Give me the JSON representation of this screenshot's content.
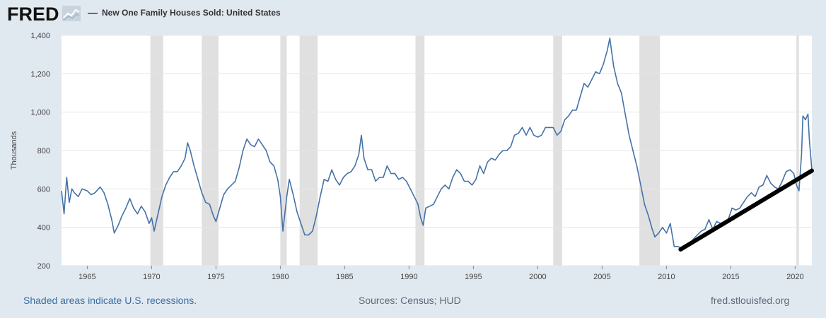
{
  "header": {
    "logo_text": "FRED",
    "series_label": "New One Family Houses Sold: United States"
  },
  "footer": {
    "recession_note": "Shaded areas indicate U.S. recessions.",
    "sources": "Sources: Census; HUD",
    "website": "fred.stlouisfed.org"
  },
  "colors": {
    "series": "#4572a7",
    "trendline": "#000000",
    "recession": "#e0e0e0",
    "background": "#e1e9f0",
    "plot": "#ffffff"
  },
  "chart_data": {
    "type": "line",
    "title": "New One Family Houses Sold: United States",
    "ylabel": "Thousands",
    "xlabel": "",
    "xlim": [
      1963.0,
      2021.3
    ],
    "ylim": [
      200,
      1400
    ],
    "x_ticks": [
      1965,
      1970,
      1975,
      1980,
      1985,
      1990,
      1995,
      2000,
      2005,
      2010,
      2015,
      2020
    ],
    "y_ticks": [
      200,
      400,
      600,
      800,
      1000,
      1200,
      1400
    ],
    "y_tick_labels": [
      "200",
      "400",
      "600",
      "800",
      "1,000",
      "1,200",
      "1,400"
    ],
    "grid": "horizontal",
    "recessions": [
      [
        1969.9,
        1970.9
      ],
      [
        1973.9,
        1975.2
      ],
      [
        1980.0,
        1980.5
      ],
      [
        1981.5,
        1982.9
      ],
      [
        1990.5,
        1991.2
      ],
      [
        2001.2,
        2001.9
      ],
      [
        2007.9,
        2009.5
      ],
      [
        2020.1,
        2020.3
      ]
    ],
    "series": [
      {
        "name": "New One Family Houses Sold: United States",
        "points": [
          [
            1963.0,
            590
          ],
          [
            1963.2,
            470
          ],
          [
            1963.4,
            660
          ],
          [
            1963.6,
            530
          ],
          [
            1963.8,
            600
          ],
          [
            1964.0,
            580
          ],
          [
            1964.3,
            560
          ],
          [
            1964.6,
            600
          ],
          [
            1965.0,
            590
          ],
          [
            1965.3,
            570
          ],
          [
            1965.6,
            580
          ],
          [
            1966.0,
            610
          ],
          [
            1966.3,
            580
          ],
          [
            1966.6,
            520
          ],
          [
            1966.9,
            440
          ],
          [
            1967.1,
            370
          ],
          [
            1967.4,
            410
          ],
          [
            1967.7,
            460
          ],
          [
            1968.0,
            500
          ],
          [
            1968.3,
            550
          ],
          [
            1968.6,
            500
          ],
          [
            1968.9,
            470
          ],
          [
            1969.2,
            510
          ],
          [
            1969.5,
            480
          ],
          [
            1969.8,
            420
          ],
          [
            1970.0,
            450
          ],
          [
            1970.2,
            380
          ],
          [
            1970.5,
            470
          ],
          [
            1970.8,
            560
          ],
          [
            1971.1,
            620
          ],
          [
            1971.4,
            660
          ],
          [
            1971.7,
            690
          ],
          [
            1972.0,
            690
          ],
          [
            1972.3,
            720
          ],
          [
            1972.6,
            760
          ],
          [
            1972.8,
            840
          ],
          [
            1973.0,
            800
          ],
          [
            1973.3,
            720
          ],
          [
            1973.6,
            650
          ],
          [
            1973.9,
            580
          ],
          [
            1974.2,
            530
          ],
          [
            1974.5,
            520
          ],
          [
            1974.8,
            460
          ],
          [
            1975.0,
            430
          ],
          [
            1975.3,
            500
          ],
          [
            1975.6,
            570
          ],
          [
            1975.9,
            600
          ],
          [
            1976.2,
            620
          ],
          [
            1976.5,
            640
          ],
          [
            1976.8,
            710
          ],
          [
            1977.1,
            800
          ],
          [
            1977.4,
            860
          ],
          [
            1977.7,
            830
          ],
          [
            1978.0,
            820
          ],
          [
            1978.3,
            860
          ],
          [
            1978.6,
            830
          ],
          [
            1978.9,
            800
          ],
          [
            1979.2,
            740
          ],
          [
            1979.5,
            720
          ],
          [
            1979.8,
            650
          ],
          [
            1980.0,
            560
          ],
          [
            1980.2,
            380
          ],
          [
            1980.5,
            560
          ],
          [
            1980.7,
            650
          ],
          [
            1981.0,
            570
          ],
          [
            1981.3,
            480
          ],
          [
            1981.6,
            420
          ],
          [
            1981.9,
            360
          ],
          [
            1982.2,
            360
          ],
          [
            1982.5,
            380
          ],
          [
            1982.8,
            460
          ],
          [
            1983.1,
            560
          ],
          [
            1983.4,
            650
          ],
          [
            1983.7,
            640
          ],
          [
            1984.0,
            700
          ],
          [
            1984.3,
            650
          ],
          [
            1984.6,
            620
          ],
          [
            1984.9,
            660
          ],
          [
            1985.2,
            680
          ],
          [
            1985.5,
            690
          ],
          [
            1985.8,
            720
          ],
          [
            1986.1,
            780
          ],
          [
            1986.3,
            880
          ],
          [
            1986.5,
            760
          ],
          [
            1986.8,
            700
          ],
          [
            1987.1,
            700
          ],
          [
            1987.4,
            640
          ],
          [
            1987.7,
            660
          ],
          [
            1988.0,
            660
          ],
          [
            1988.3,
            720
          ],
          [
            1988.6,
            680
          ],
          [
            1988.9,
            680
          ],
          [
            1989.2,
            650
          ],
          [
            1989.5,
            660
          ],
          [
            1989.8,
            640
          ],
          [
            1990.1,
            600
          ],
          [
            1990.4,
            560
          ],
          [
            1990.7,
            520
          ],
          [
            1990.9,
            450
          ],
          [
            1991.1,
            410
          ],
          [
            1991.3,
            500
          ],
          [
            1991.6,
            510
          ],
          [
            1991.9,
            520
          ],
          [
            1992.2,
            560
          ],
          [
            1992.5,
            600
          ],
          [
            1992.8,
            620
          ],
          [
            1993.1,
            600
          ],
          [
            1993.4,
            660
          ],
          [
            1993.7,
            700
          ],
          [
            1994.0,
            680
          ],
          [
            1994.3,
            640
          ],
          [
            1994.6,
            640
          ],
          [
            1994.9,
            620
          ],
          [
            1995.2,
            650
          ],
          [
            1995.5,
            720
          ],
          [
            1995.8,
            680
          ],
          [
            1996.1,
            740
          ],
          [
            1996.4,
            760
          ],
          [
            1996.7,
            750
          ],
          [
            1997.0,
            780
          ],
          [
            1997.3,
            800
          ],
          [
            1997.6,
            800
          ],
          [
            1997.9,
            820
          ],
          [
            1998.2,
            880
          ],
          [
            1998.5,
            890
          ],
          [
            1998.8,
            920
          ],
          [
            1999.1,
            880
          ],
          [
            1999.4,
            920
          ],
          [
            1999.7,
            880
          ],
          [
            2000.0,
            870
          ],
          [
            2000.3,
            880
          ],
          [
            2000.6,
            920
          ],
          [
            2000.9,
            920
          ],
          [
            2001.2,
            920
          ],
          [
            2001.5,
            880
          ],
          [
            2001.8,
            900
          ],
          [
            2002.1,
            960
          ],
          [
            2002.4,
            980
          ],
          [
            2002.7,
            1010
          ],
          [
            2003.0,
            1010
          ],
          [
            2003.3,
            1080
          ],
          [
            2003.6,
            1150
          ],
          [
            2003.9,
            1130
          ],
          [
            2004.2,
            1170
          ],
          [
            2004.5,
            1210
          ],
          [
            2004.8,
            1200
          ],
          [
            2005.1,
            1250
          ],
          [
            2005.4,
            1320
          ],
          [
            2005.6,
            1385
          ],
          [
            2005.9,
            1240
          ],
          [
            2006.2,
            1150
          ],
          [
            2006.5,
            1100
          ],
          [
            2006.8,
            990
          ],
          [
            2007.1,
            880
          ],
          [
            2007.4,
            800
          ],
          [
            2007.7,
            720
          ],
          [
            2008.0,
            620
          ],
          [
            2008.3,
            520
          ],
          [
            2008.6,
            460
          ],
          [
            2008.9,
            390
          ],
          [
            2009.1,
            350
          ],
          [
            2009.4,
            370
          ],
          [
            2009.7,
            400
          ],
          [
            2010.0,
            370
          ],
          [
            2010.3,
            420
          ],
          [
            2010.6,
            300
          ],
          [
            2010.9,
            300
          ],
          [
            2011.2,
            290
          ],
          [
            2011.5,
            300
          ],
          [
            2011.8,
            310
          ],
          [
            2012.1,
            340
          ],
          [
            2012.4,
            360
          ],
          [
            2012.7,
            380
          ],
          [
            2013.0,
            390
          ],
          [
            2013.3,
            440
          ],
          [
            2013.6,
            390
          ],
          [
            2013.9,
            430
          ],
          [
            2014.2,
            420
          ],
          [
            2014.5,
            430
          ],
          [
            2014.8,
            440
          ],
          [
            2015.1,
            500
          ],
          [
            2015.4,
            490
          ],
          [
            2015.7,
            500
          ],
          [
            2016.0,
            530
          ],
          [
            2016.3,
            560
          ],
          [
            2016.6,
            580
          ],
          [
            2016.9,
            560
          ],
          [
            2017.2,
            610
          ],
          [
            2017.5,
            620
          ],
          [
            2017.8,
            670
          ],
          [
            2018.1,
            630
          ],
          [
            2018.4,
            610
          ],
          [
            2018.7,
            600
          ],
          [
            2019.0,
            640
          ],
          [
            2019.3,
            690
          ],
          [
            2019.6,
            700
          ],
          [
            2019.9,
            680
          ],
          [
            2020.1,
            620
          ],
          [
            2020.3,
            590
          ],
          [
            2020.5,
            780
          ],
          [
            2020.6,
            980
          ],
          [
            2020.8,
            960
          ],
          [
            2021.0,
            990
          ],
          [
            2021.1,
            860
          ],
          [
            2021.2,
            780
          ],
          [
            2021.3,
            700
          ]
        ]
      }
    ],
    "annotation": {
      "type": "trendline",
      "description": "hand-drawn black trend line",
      "from": [
        2011.1,
        285
      ],
      "to": [
        2021.3,
        695
      ]
    }
  }
}
